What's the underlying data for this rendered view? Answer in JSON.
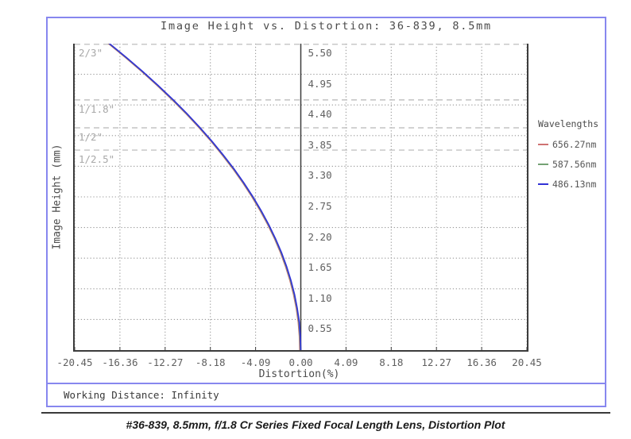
{
  "page": {
    "working_distance": "Working Distance: Infinity",
    "caption": "#36-839, 8.5mm, f/1.8 Cr Series Fixed Focal Length Lens, Distortion Plot"
  },
  "legend": {
    "title": "Wavelengths"
  },
  "chart_data": {
    "type": "line",
    "title": "Image Height vs. Distortion: 36-839, 8.5mm",
    "xlabel": "Distortion(%)",
    "ylabel": "Image Height (mm)",
    "xlim": [
      -20.45,
      20.45
    ],
    "ylim": [
      0,
      5.5
    ],
    "x_ticks": [
      -20.45,
      -16.36,
      -12.27,
      -8.18,
      -4.09,
      0.0,
      4.09,
      8.18,
      12.27,
      16.36,
      20.45
    ],
    "y_ticks": [
      5.5,
      4.95,
      4.4,
      3.85,
      3.3,
      2.75,
      2.2,
      1.65,
      1.1,
      0.55
    ],
    "grid": true,
    "legend_position": "right-outside",
    "image_height_mm": [
      0,
      0.25,
      0.5,
      0.75,
      1.0,
      1.25,
      1.5,
      1.75,
      2.0,
      2.25,
      2.5,
      2.75,
      3.0,
      3.25,
      3.5,
      3.75,
      4.0,
      4.25,
      4.5,
      4.75,
      5.0,
      5.25,
      5.5
    ],
    "distortion_pct": [
      0.0,
      -0.04,
      -0.14,
      -0.32,
      -0.57,
      -0.89,
      -1.29,
      -1.75,
      -2.29,
      -2.9,
      -3.58,
      -4.33,
      -5.15,
      -6.04,
      -7.01,
      -8.04,
      -9.15,
      -10.33,
      -11.58,
      -12.91,
      -14.3,
      -15.77,
      -17.3
    ],
    "series": [
      {
        "name": "656.27nm",
        "color": "#cf7272",
        "visual_offset_pct": -0.1
      },
      {
        "name": "587.56nm",
        "color": "#74a274",
        "visual_offset_pct": -0.05
      },
      {
        "name": "486.13nm",
        "color": "#3232d6",
        "visual_offset_pct": 0
      }
    ],
    "sensor_format_lines": [
      {
        "label": "2/3\"",
        "image_height_mm": 5.5
      },
      {
        "label": "1/1.8\"",
        "image_height_mm": 4.49
      },
      {
        "label": "1/2\"",
        "image_height_mm": 3.99
      },
      {
        "label": "1/2.5\"",
        "image_height_mm": 3.59
      }
    ],
    "colors": {
      "frame": "#8787ef",
      "plot_border": "#3c3c3c",
      "grid_dotted": "#9b9b9b",
      "grid_dashed": "#b6b6b6",
      "tick_text": "#606060",
      "sensor_text": "#a8a8a8"
    }
  }
}
